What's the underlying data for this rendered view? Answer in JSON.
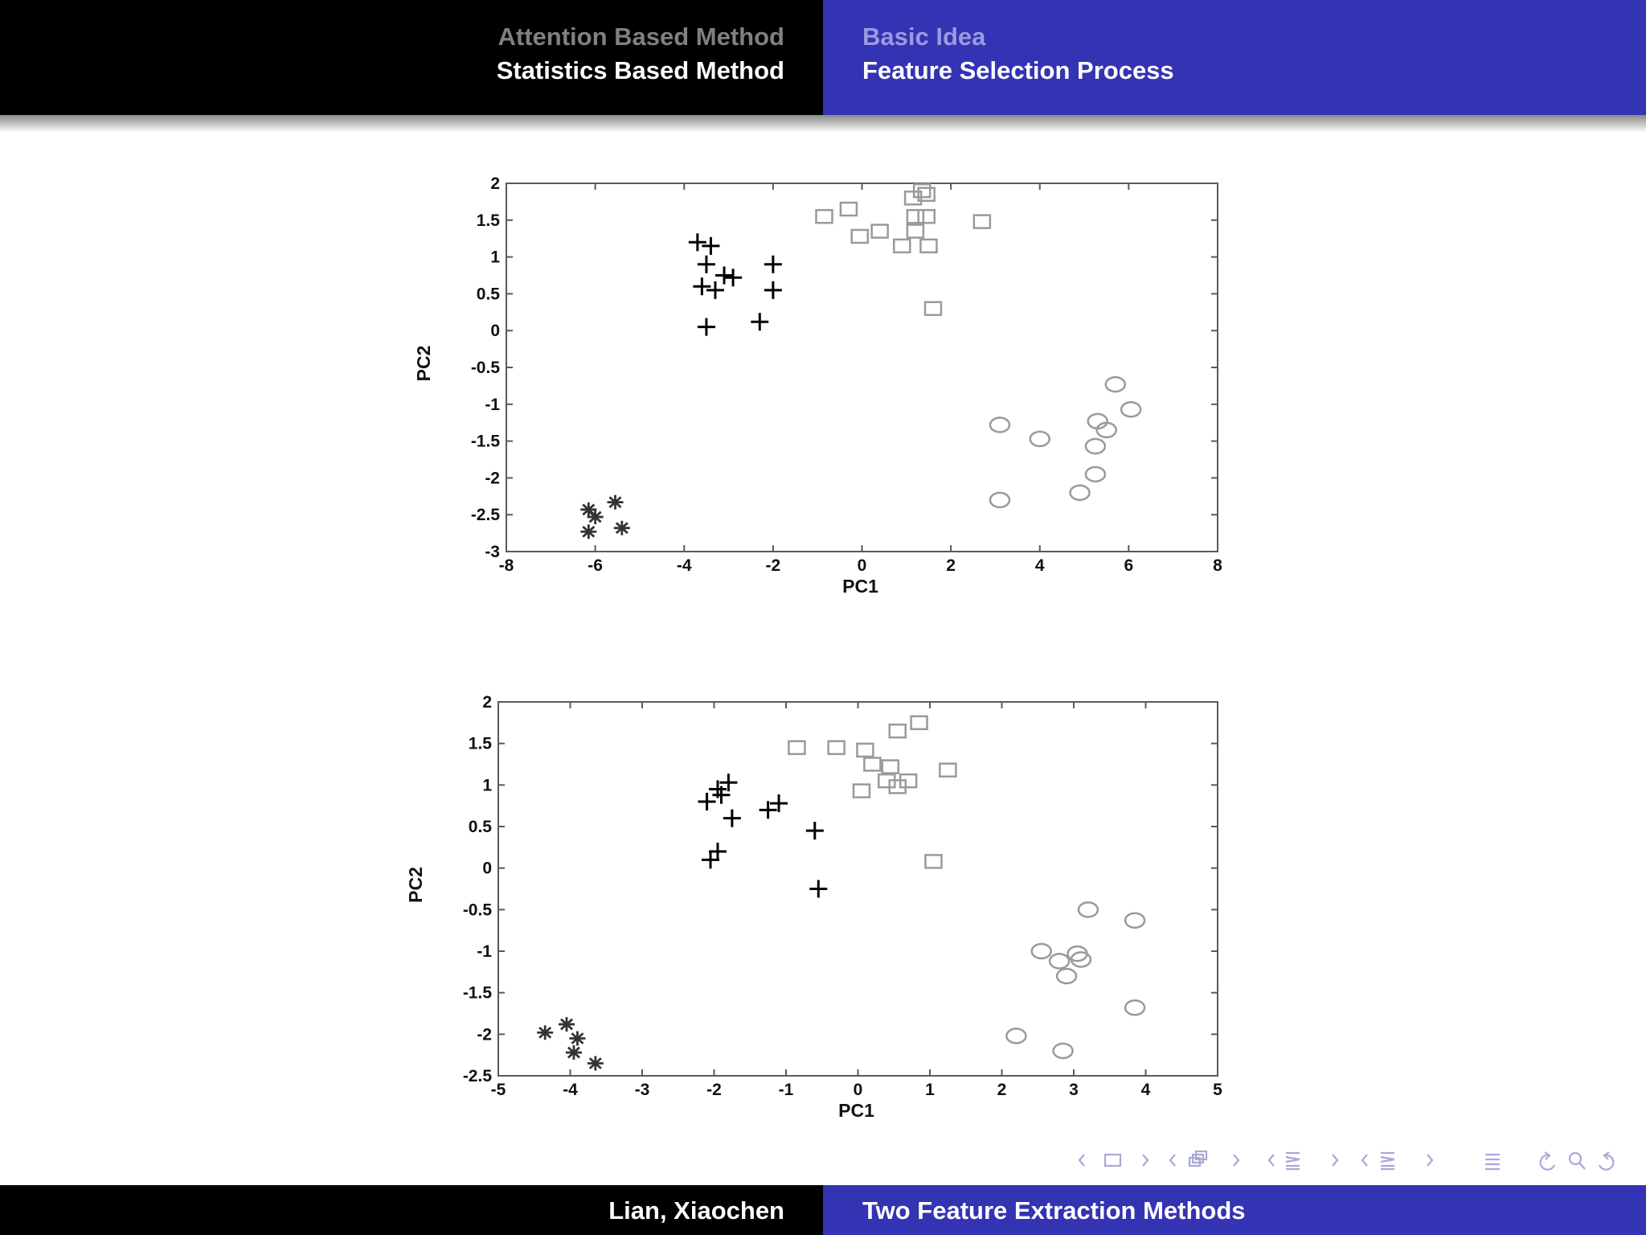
{
  "header": {
    "left": {
      "line1": "Attention Based Method",
      "line2": "Statistics Based Method"
    },
    "right": {
      "line1": "Basic Idea",
      "line2": "Feature Selection Process"
    }
  },
  "footer": {
    "author": "Lian, Xiaochen",
    "title": "Two Feature Extraction Methods"
  },
  "colors": {
    "dark": "#000000",
    "blue": "#3333b3",
    "marker_gray": "#9a9a9a",
    "marker_dark": "#333333"
  },
  "nav_icons": [
    "arrow-left-icon",
    "frame-icon",
    "arrow-right-icon",
    "subsection-icon",
    "section-icon",
    "align-icon",
    "back-icon",
    "search-icon",
    "forward-icon"
  ],
  "chart_data": [
    {
      "type": "scatter",
      "xlabel": "PC1",
      "ylabel": "PC2",
      "xlim": [
        -8,
        8
      ],
      "ylim": [
        -3,
        2
      ],
      "xticks": [
        "-8",
        "-6",
        "-4",
        "-2",
        "0",
        "2",
        "4",
        "6",
        "8"
      ],
      "yticks": [
        "2",
        "1.5",
        "1",
        "0.5",
        "0",
        "-0.5",
        "-1",
        "-1.5",
        "-2",
        "-2.5",
        "-3"
      ],
      "series": [
        {
          "marker": "plus",
          "points": [
            [
              -3.7,
              1.2
            ],
            [
              -3.4,
              1.15
            ],
            [
              -3.5,
              0.9
            ],
            [
              -3.1,
              0.75
            ],
            [
              -2.9,
              0.72
            ],
            [
              -2.0,
              0.9
            ],
            [
              -3.6,
              0.6
            ],
            [
              -3.3,
              0.55
            ],
            [
              -2.0,
              0.55
            ],
            [
              -2.3,
              0.12
            ],
            [
              -3.5,
              0.05
            ]
          ]
        },
        {
          "marker": "square",
          "points": [
            [
              1.35,
              1.9
            ],
            [
              1.45,
              1.85
            ],
            [
              1.15,
              1.8
            ],
            [
              -0.3,
              1.65
            ],
            [
              -0.85,
              1.55
            ],
            [
              1.2,
              1.55
            ],
            [
              1.45,
              1.55
            ],
            [
              2.7,
              1.48
            ],
            [
              0.4,
              1.35
            ],
            [
              1.2,
              1.35
            ],
            [
              -0.05,
              1.28
            ],
            [
              0.9,
              1.15
            ],
            [
              1.5,
              1.15
            ],
            [
              1.6,
              0.3
            ]
          ]
        },
        {
          "marker": "circle",
          "points": [
            [
              5.7,
              -0.73
            ],
            [
              6.05,
              -1.07
            ],
            [
              5.3,
              -1.23
            ],
            [
              5.5,
              -1.35
            ],
            [
              3.1,
              -1.28
            ],
            [
              4.0,
              -1.47
            ],
            [
              5.25,
              -1.57
            ],
            [
              5.25,
              -1.95
            ],
            [
              4.9,
              -2.2
            ],
            [
              3.1,
              -2.3
            ]
          ]
        },
        {
          "marker": "asterisk",
          "points": [
            [
              -5.55,
              -2.33
            ],
            [
              -6.15,
              -2.43
            ],
            [
              -6.0,
              -2.53
            ],
            [
              -5.4,
              -2.68
            ],
            [
              -6.15,
              -2.73
            ]
          ]
        }
      ]
    },
    {
      "type": "scatter",
      "xlabel": "PC1",
      "ylabel": "PC2",
      "xlim": [
        -5,
        5
      ],
      "ylim": [
        -2.5,
        2
      ],
      "xticks": [
        "-5",
        "-4",
        "-3",
        "-2",
        "-1",
        "0",
        "1",
        "2",
        "3",
        "4",
        "5"
      ],
      "yticks": [
        "2",
        "1.5",
        "1",
        "0.5",
        "0",
        "-0.5",
        "-1",
        "-1.5",
        "-2",
        "-2.5"
      ],
      "series": [
        {
          "marker": "plus",
          "points": [
            [
              -1.8,
              1.03
            ],
            [
              -1.95,
              0.95
            ],
            [
              -1.9,
              0.88
            ],
            [
              -2.1,
              0.8
            ],
            [
              -1.1,
              0.78
            ],
            [
              -1.25,
              0.7
            ],
            [
              -1.75,
              0.6
            ],
            [
              -0.6,
              0.45
            ],
            [
              -1.95,
              0.2
            ],
            [
              -2.05,
              0.1
            ],
            [
              -0.55,
              -0.25
            ]
          ]
        },
        {
          "marker": "square",
          "points": [
            [
              0.85,
              1.75
            ],
            [
              0.55,
              1.65
            ],
            [
              -0.85,
              1.45
            ],
            [
              -0.3,
              1.45
            ],
            [
              0.1,
              1.42
            ],
            [
              0.2,
              1.25
            ],
            [
              0.45,
              1.22
            ],
            [
              1.25,
              1.18
            ],
            [
              0.4,
              1.05
            ],
            [
              0.7,
              1.05
            ],
            [
              0.55,
              0.98
            ],
            [
              0.05,
              0.93
            ],
            [
              1.05,
              0.08
            ]
          ]
        },
        {
          "marker": "circle",
          "points": [
            [
              3.2,
              -0.5
            ],
            [
              3.85,
              -0.63
            ],
            [
              2.55,
              -1.0
            ],
            [
              3.05,
              -1.03
            ],
            [
              2.8,
              -1.12
            ],
            [
              3.1,
              -1.1
            ],
            [
              2.9,
              -1.3
            ],
            [
              3.85,
              -1.68
            ],
            [
              2.2,
              -2.02
            ],
            [
              2.85,
              -2.2
            ]
          ]
        },
        {
          "marker": "asterisk",
          "points": [
            [
              -4.05,
              -1.88
            ],
            [
              -4.35,
              -1.98
            ],
            [
              -3.9,
              -2.05
            ],
            [
              -3.95,
              -2.22
            ],
            [
              -3.65,
              -2.35
            ]
          ]
        }
      ]
    }
  ]
}
